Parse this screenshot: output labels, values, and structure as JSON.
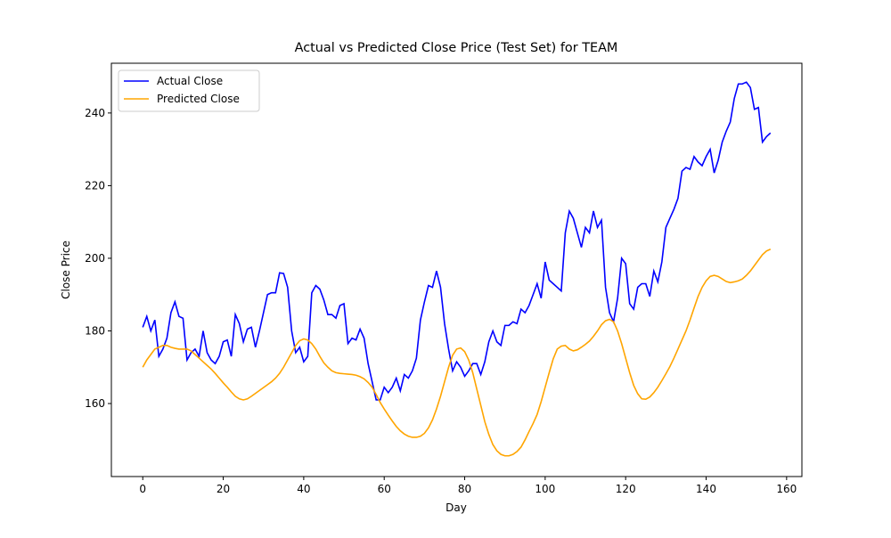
{
  "chart_data": {
    "type": "line",
    "title": "Actual vs Predicted Close Price (Test Set) for TEAM",
    "x_label": "Day",
    "y_label": "Close Price",
    "x": [
      0,
      1,
      2,
      3,
      4,
      5,
      6,
      7,
      8,
      9,
      10,
      11,
      12,
      13,
      14,
      15,
      16,
      17,
      18,
      19,
      20,
      21,
      22,
      23,
      24,
      25,
      26,
      27,
      28,
      29,
      30,
      31,
      32,
      33,
      34,
      35,
      36,
      37,
      38,
      39,
      40,
      41,
      42,
      43,
      44,
      45,
      46,
      47,
      48,
      49,
      50,
      51,
      52,
      53,
      54,
      55,
      56,
      57,
      58,
      59,
      60,
      61,
      62,
      63,
      64,
      65,
      66,
      67,
      68,
      69,
      70,
      71,
      72,
      73,
      74,
      75,
      76,
      77,
      78,
      79,
      80,
      81,
      82,
      83,
      84,
      85,
      86,
      87,
      88,
      89,
      90,
      91,
      92,
      93,
      94,
      95,
      96,
      97,
      98,
      99,
      100,
      101,
      102,
      103,
      104,
      105,
      106,
      107,
      108,
      109,
      110,
      111,
      112,
      113,
      114,
      115,
      116,
      117,
      118,
      119,
      120,
      121,
      122,
      123,
      124,
      125,
      126,
      127,
      128,
      129,
      130,
      131,
      132,
      133,
      134,
      135,
      136,
      137,
      138,
      139,
      140,
      141,
      142,
      143,
      144,
      145,
      146,
      147,
      148,
      149,
      150,
      151,
      152,
      153,
      154,
      155,
      156
    ],
    "series": [
      {
        "name": "Actual Close",
        "color": "#0000ff",
        "values": [
          181,
          184,
          180,
          183,
          173,
          175,
          178,
          185,
          188,
          184,
          183.5,
          172,
          174,
          175,
          173,
          180,
          174,
          172,
          171,
          173,
          177,
          177.5,
          173,
          184.5,
          182,
          177,
          180.5,
          181,
          175.5,
          180,
          185,
          190,
          190.5,
          190.5,
          196,
          195.8,
          192,
          180,
          174,
          175.5,
          171.5,
          173,
          190.5,
          192.5,
          191.5,
          188.5,
          184.5,
          184.5,
          183.5,
          187,
          187.5,
          176.5,
          178,
          177.5,
          180.5,
          178,
          171,
          166,
          161,
          161,
          164.5,
          163,
          164.5,
          167,
          163.5,
          168,
          167,
          169,
          172.5,
          183,
          188,
          192.5,
          192,
          196.5,
          192,
          182,
          175,
          169,
          171.5,
          170,
          167.5,
          169,
          171,
          171,
          168,
          171.5,
          177,
          180,
          177,
          176,
          181.5,
          181.5,
          182.5,
          182,
          186,
          185,
          187,
          190,
          193,
          189,
          199,
          194,
          193,
          192,
          191,
          207,
          213,
          211,
          207,
          203,
          208.5,
          207,
          213,
          208.5,
          210.5,
          192,
          185,
          182.5,
          189,
          200,
          198.5,
          187.5,
          186,
          192,
          193,
          193,
          189.5,
          196.5,
          193.5,
          199,
          208.5,
          211,
          213.5,
          216.5,
          224,
          225,
          224.5,
          228,
          226.5,
          225.5,
          228,
          230,
          223.5,
          227,
          232,
          235,
          237.5,
          244,
          248,
          248,
          248.5,
          247,
          241,
          241.5,
          232,
          233.5,
          234.5
        ]
      },
      {
        "name": "Predicted Close",
        "color": "#ffa500",
        "values": [
          170,
          172,
          173.5,
          175,
          175.5,
          176,
          176,
          175.5,
          175.2,
          175,
          175,
          175,
          174.5,
          173.5,
          172.5,
          171.5,
          170.5,
          169.5,
          168.3,
          167,
          165.7,
          164.5,
          163.2,
          162,
          161.3,
          161,
          161.3,
          162,
          162.8,
          163.6,
          164.4,
          165.2,
          166,
          167,
          168.3,
          170,
          172,
          174,
          176,
          177.3,
          177.8,
          177.5,
          176.5,
          175,
          173,
          171.2,
          170,
          169,
          168.5,
          168.3,
          168.2,
          168.1,
          168,
          167.8,
          167.4,
          166.8,
          165.8,
          164.5,
          162.5,
          160.3,
          158.5,
          156.8,
          155.2,
          153.7,
          152.5,
          151.6,
          151,
          150.7,
          150.7,
          151,
          151.8,
          153.3,
          155.5,
          158.5,
          162,
          166,
          170,
          173.3,
          175,
          175.3,
          174.3,
          172,
          168.5,
          164,
          159.5,
          155,
          151.5,
          148.7,
          147,
          146,
          145.6,
          145.6,
          146,
          146.8,
          148,
          150,
          152.3,
          154.5,
          157,
          160.5,
          164.5,
          168.5,
          172.3,
          175,
          175.8,
          176,
          175,
          174.5,
          174.8,
          175.5,
          176.3,
          177.2,
          178.5,
          180,
          181.7,
          182.8,
          183.2,
          182.5,
          180,
          176.5,
          172.5,
          168.5,
          165,
          162.7,
          161.3,
          161.2,
          161.8,
          163,
          164.5,
          166.3,
          168.2,
          170.2,
          172.5,
          175,
          177.5,
          180,
          183,
          186.3,
          189.5,
          192,
          193.8,
          195,
          195.3,
          195,
          194.3,
          193.6,
          193.3,
          193.5,
          193.8,
          194.3,
          195.3,
          196.5,
          198,
          199.5,
          201,
          202,
          202.5
        ]
      }
    ],
    "xlim": [
      -7.8,
      163.8
    ],
    "ylim": [
      139.9,
      253.7
    ],
    "xticks": [
      0,
      20,
      40,
      60,
      80,
      100,
      120,
      140,
      160
    ],
    "yticks": [
      160,
      180,
      200,
      220,
      240
    ],
    "legend": "upper left"
  }
}
